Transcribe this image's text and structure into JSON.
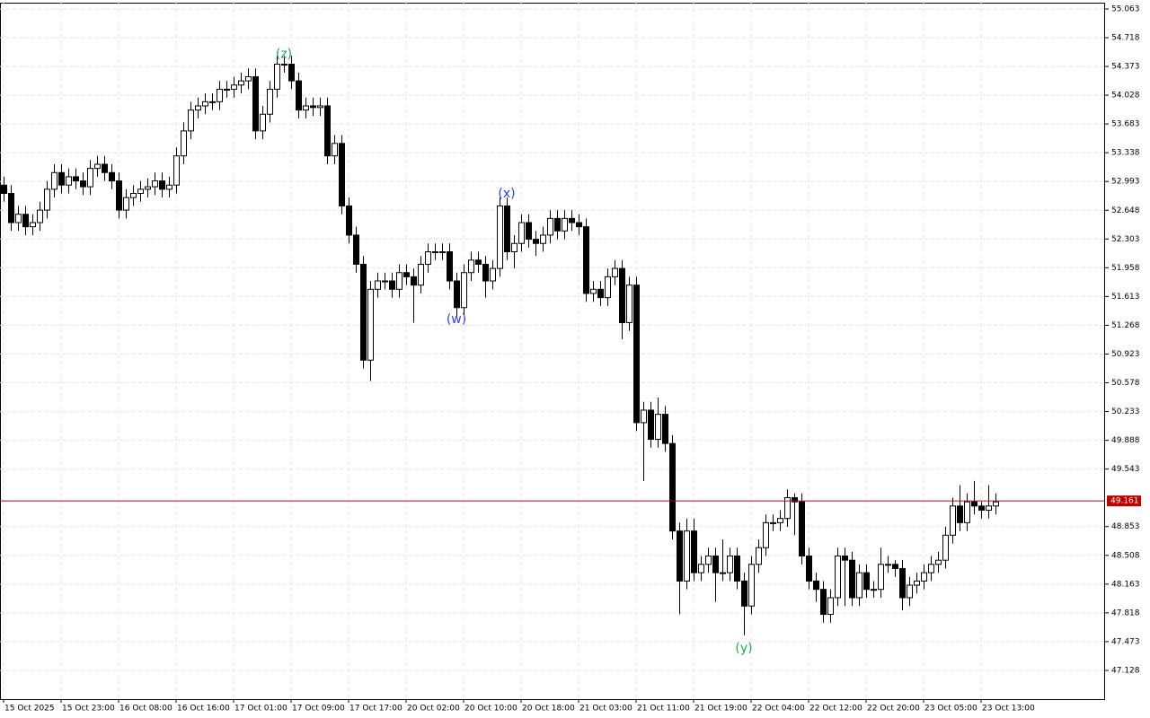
{
  "chart_data": {
    "type": "candlestick",
    "categories": [
      "15 Oct 2025",
      null,
      null,
      null,
      null,
      null,
      null,
      null,
      "15 Oct 23:00",
      null,
      null,
      null,
      null,
      null,
      null,
      null,
      "16 Oct 08:00",
      null,
      null,
      null,
      null,
      null,
      null,
      null,
      "16 Oct 16:00",
      null,
      null,
      null,
      null,
      null,
      null,
      null,
      "17 Oct 01:00",
      null,
      null,
      null,
      null,
      null,
      null,
      null,
      "17 Oct 09:00",
      null,
      null,
      null,
      null,
      null,
      null,
      null,
      "17 Oct 17:00",
      null,
      null,
      null,
      null,
      null,
      null,
      null,
      "20 Oct 02:00",
      null,
      null,
      null,
      null,
      null,
      null,
      null,
      "20 Oct 10:00",
      null,
      null,
      null,
      null,
      null,
      null,
      null,
      "20 Oct 18:00",
      null,
      null,
      null,
      null,
      null,
      null,
      null,
      "21 Oct 03:00",
      null,
      null,
      null,
      null,
      null,
      null,
      null,
      "21 Oct 11:00",
      null,
      null,
      null,
      null,
      null,
      null,
      null,
      "21 Oct 19:00",
      null,
      null,
      null,
      null,
      null,
      null,
      null,
      "22 Oct 04:00",
      null,
      null,
      null,
      null,
      null,
      null,
      null,
      "22 Oct 12:00",
      null,
      null,
      null,
      null,
      null,
      null,
      null,
      "22 Oct 20:00",
      null,
      null,
      null,
      null,
      null,
      null,
      null,
      "23 Oct 05:00",
      null,
      null,
      null,
      null,
      null,
      null,
      null,
      "23 Oct 13:00",
      null,
      null
    ],
    "open": [
      52.95,
      52.85,
      52.5,
      52.6,
      52.45,
      52.5,
      52.65,
      52.9,
      53.1,
      52.95,
      53.05,
      53.0,
      52.93,
      53.15,
      53.2,
      53.1,
      53.0,
      52.65,
      52.8,
      52.85,
      52.9,
      52.93,
      53.0,
      52.9,
      52.95,
      53.3,
      53.6,
      53.85,
      53.9,
      53.95,
      53.95,
      54.1,
      54.1,
      54.15,
      54.2,
      54.25,
      53.6,
      53.8,
      54.1,
      54.4,
      54.4,
      54.2,
      53.85,
      53.9,
      53.88,
      53.9,
      53.3,
      53.45,
      52.7,
      52.35,
      52.0,
      50.85,
      51.7,
      51.8,
      51.8,
      51.7,
      51.9,
      51.85,
      51.75,
      52.0,
      52.15,
      52.15,
      52.15,
      51.8,
      51.48,
      51.9,
      52.05,
      52.0,
      51.8,
      51.95,
      52.7,
      52.15,
      52.25,
      52.5,
      52.3,
      52.25,
      52.35,
      52.55,
      52.4,
      52.55,
      52.5,
      52.45,
      51.65,
      51.7,
      51.6,
      51.85,
      51.95,
      51.3,
      51.75,
      50.1,
      50.25,
      49.9,
      50.2,
      49.85,
      48.8,
      48.2,
      48.8,
      48.3,
      48.4,
      48.5,
      48.3,
      48.3,
      48.5,
      48.2,
      47.9,
      48.4,
      48.6,
      48.9,
      48.9,
      48.95,
      49.2,
      49.15,
      48.5,
      48.2,
      48.1,
      47.8,
      48.0,
      48.5,
      48.45,
      48.0,
      48.3,
      48.1,
      48.1,
      48.4,
      48.4,
      48.35,
      48.0,
      48.15,
      48.2,
      48.3,
      48.4,
      48.45,
      48.75,
      49.1,
      48.9,
      49.15,
      49.1,
      49.05,
      49.1
    ],
    "high": [
      53.05,
      52.95,
      52.7,
      52.7,
      52.6,
      52.75,
      53.0,
      53.2,
      53.2,
      53.15,
      53.15,
      53.1,
      53.25,
      53.3,
      53.3,
      53.2,
      53.1,
      52.9,
      52.95,
      53.0,
      53.03,
      53.1,
      53.1,
      53.05,
      53.4,
      53.7,
      53.95,
      54.0,
      54.05,
      54.05,
      54.2,
      54.2,
      54.25,
      54.3,
      54.35,
      54.35,
      53.9,
      54.2,
      54.5,
      54.5,
      54.5,
      54.3,
      54.0,
      54.0,
      54.0,
      54.0,
      53.55,
      53.55,
      52.8,
      52.45,
      52.1,
      51.8,
      51.9,
      51.9,
      51.9,
      52.0,
      52.0,
      51.95,
      52.1,
      52.25,
      52.25,
      52.25,
      52.25,
      51.9,
      52.0,
      52.15,
      52.15,
      52.1,
      52.05,
      52.8,
      52.8,
      52.35,
      52.6,
      52.6,
      52.4,
      52.45,
      52.65,
      52.65,
      52.65,
      52.65,
      52.6,
      52.55,
      51.8,
      51.8,
      51.95,
      52.05,
      52.05,
      51.85,
      51.85,
      50.35,
      50.35,
      50.4,
      50.3,
      49.95,
      48.9,
      48.95,
      48.95,
      48.5,
      48.6,
      48.6,
      48.7,
      48.6,
      48.6,
      48.3,
      48.5,
      48.7,
      49.0,
      49.0,
      49.05,
      49.3,
      49.25,
      49.25,
      48.6,
      48.3,
      48.2,
      48.1,
      48.6,
      48.6,
      48.55,
      48.4,
      48.4,
      48.2,
      48.6,
      48.5,
      48.45,
      48.45,
      48.25,
      48.3,
      48.4,
      48.5,
      48.55,
      48.85,
      49.2,
      49.35,
      49.25,
      49.4,
      49.15,
      49.35,
      49.25
    ],
    "low": [
      52.75,
      52.4,
      52.4,
      52.35,
      52.35,
      52.4,
      52.55,
      52.8,
      52.85,
      52.85,
      52.9,
      52.83,
      52.83,
      53.05,
      53.0,
      52.9,
      52.55,
      52.55,
      52.7,
      52.75,
      52.8,
      52.83,
      52.8,
      52.8,
      52.85,
      53.2,
      53.5,
      53.75,
      53.8,
      53.85,
      53.85,
      54.0,
      54.0,
      54.05,
      54.1,
      53.5,
      53.5,
      53.7,
      54.0,
      54.3,
      54.1,
      53.75,
      53.75,
      53.78,
      53.78,
      53.2,
      53.2,
      52.6,
      52.25,
      51.9,
      50.75,
      50.6,
      51.6,
      51.7,
      51.6,
      51.6,
      51.75,
      51.3,
      51.65,
      51.9,
      52.05,
      52.05,
      51.7,
      51.38,
      51.38,
      51.8,
      51.9,
      51.6,
      51.7,
      51.85,
      52.05,
      51.95,
      52.15,
      52.2,
      52.1,
      52.15,
      52.25,
      52.3,
      52.3,
      52.4,
      52.35,
      51.55,
      51.55,
      51.5,
      51.5,
      51.75,
      51.1,
      51.2,
      50.0,
      49.4,
      49.8,
      49.8,
      49.75,
      48.7,
      47.8,
      48.1,
      48.2,
      48.2,
      48.3,
      47.95,
      48.2,
      48.2,
      48.1,
      47.55,
      47.8,
      48.3,
      48.5,
      48.8,
      48.8,
      48.85,
      48.75,
      48.4,
      48.1,
      47.95,
      47.7,
      47.7,
      47.9,
      47.9,
      47.9,
      47.9,
      48.0,
      48.0,
      48.0,
      48.3,
      48.25,
      47.85,
      47.9,
      48.05,
      48.1,
      48.2,
      48.3,
      48.35,
      48.65,
      48.8,
      48.8,
      49.0,
      48.95,
      48.95,
      49.0
    ],
    "close": [
      52.85,
      52.5,
      52.6,
      52.45,
      52.5,
      52.65,
      52.9,
      53.1,
      52.95,
      53.05,
      53.0,
      52.93,
      53.15,
      53.2,
      53.1,
      53.0,
      52.65,
      52.8,
      52.85,
      52.9,
      52.93,
      53.0,
      52.9,
      52.95,
      53.3,
      53.6,
      53.85,
      53.9,
      53.95,
      53.95,
      54.1,
      54.1,
      54.15,
      54.2,
      54.25,
      53.6,
      53.8,
      54.1,
      54.4,
      54.4,
      54.2,
      53.85,
      53.9,
      53.88,
      53.9,
      53.3,
      53.45,
      52.7,
      52.35,
      52.0,
      50.85,
      51.7,
      51.8,
      51.8,
      51.7,
      51.9,
      51.85,
      51.75,
      52.0,
      52.15,
      52.15,
      52.15,
      51.8,
      51.48,
      51.9,
      52.05,
      52.0,
      51.8,
      51.95,
      52.7,
      52.15,
      52.25,
      52.5,
      52.3,
      52.25,
      52.35,
      52.55,
      52.4,
      52.55,
      52.5,
      52.45,
      51.65,
      51.7,
      51.6,
      51.85,
      51.95,
      51.3,
      51.75,
      50.1,
      50.25,
      49.9,
      50.2,
      49.85,
      48.8,
      48.2,
      48.8,
      48.3,
      48.4,
      48.5,
      48.3,
      48.3,
      48.5,
      48.2,
      47.9,
      48.4,
      48.6,
      48.9,
      48.9,
      48.95,
      49.2,
      49.15,
      48.5,
      48.2,
      48.1,
      47.8,
      48.0,
      48.5,
      48.45,
      48.0,
      48.3,
      48.1,
      48.1,
      48.4,
      48.4,
      48.35,
      48.0,
      48.15,
      48.2,
      48.3,
      48.4,
      48.45,
      48.75,
      49.1,
      48.9,
      49.15,
      49.1,
      49.05,
      49.1,
      49.15
    ],
    "ylim": [
      46.783,
      55.138
    ],
    "yticks": [
      {
        "value": 55.063,
        "label": "55.063"
      },
      {
        "value": 54.718,
        "label": "54.718"
      },
      {
        "value": 54.373,
        "label": "54.373"
      },
      {
        "value": 54.028,
        "label": "54.028"
      },
      {
        "value": 53.683,
        "label": "53.683"
      },
      {
        "value": 53.338,
        "label": "53.338"
      },
      {
        "value": 52.993,
        "label": "52.993"
      },
      {
        "value": 52.648,
        "label": "52.648"
      },
      {
        "value": 52.303,
        "label": "52.303"
      },
      {
        "value": 51.958,
        "label": "51.958"
      },
      {
        "value": 51.613,
        "label": "51.613"
      },
      {
        "value": 51.268,
        "label": "51.268"
      },
      {
        "value": 50.923,
        "label": "50.923"
      },
      {
        "value": 50.578,
        "label": "50.578"
      },
      {
        "value": 50.233,
        "label": "50.233"
      },
      {
        "value": 49.888,
        "label": "49.888"
      },
      {
        "value": 49.543,
        "label": "49.543"
      },
      {
        "value": 48.853,
        "label": "48.853"
      },
      {
        "value": 48.508,
        "label": "48.508"
      },
      {
        "value": 48.163,
        "label": "48.163"
      },
      {
        "value": 47.818,
        "label": "47.818"
      },
      {
        "value": 47.473,
        "label": "47.473"
      },
      {
        "value": 47.128,
        "label": "47.128"
      }
    ],
    "grid": true,
    "up_color": "#ffffff",
    "down_color": "#000000",
    "price_line": {
      "value": 49.161,
      "label": "49.161",
      "color": "#c00000"
    },
    "annotations": [
      {
        "text": "(z)",
        "index": 39,
        "value": 54.52,
        "color": "#1aa070"
      },
      {
        "text": "(x)",
        "index": 70,
        "value": 52.845,
        "color": "#2a3cf0"
      },
      {
        "text": "(w)",
        "index": 63,
        "value": 51.34,
        "color": "#2a3cf0"
      },
      {
        "text": "(y)",
        "index": 103,
        "value": 47.39,
        "color": "#1fae3c"
      }
    ]
  }
}
